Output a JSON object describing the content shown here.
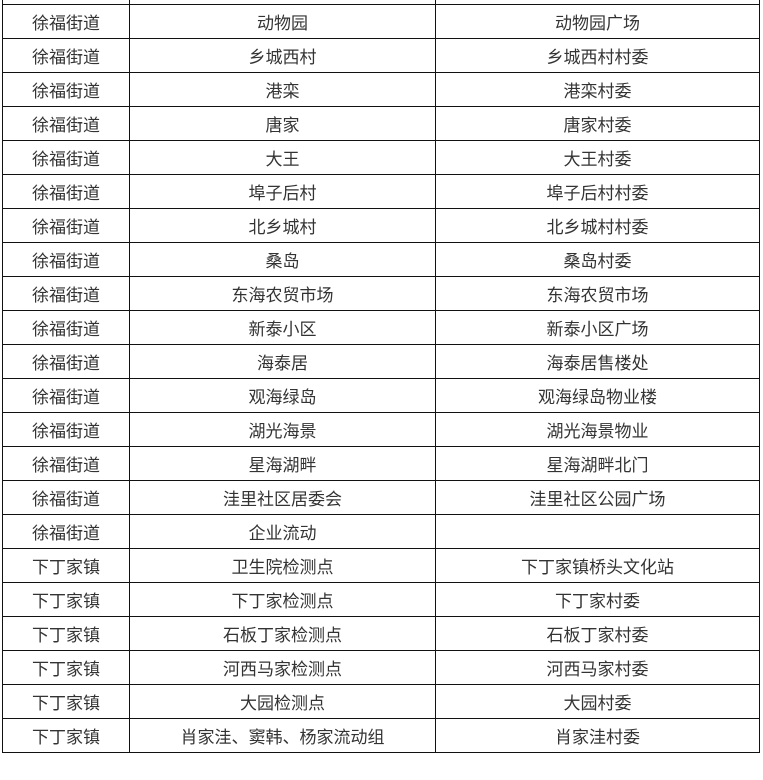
{
  "table": {
    "rows": [
      [
        "徐福街道",
        "动物园",
        "动物园广场"
      ],
      [
        "徐福街道",
        "乡城西村",
        "乡城西村村委"
      ],
      [
        "徐福街道",
        "港栾",
        "港栾村委"
      ],
      [
        "徐福街道",
        "唐家",
        "唐家村委"
      ],
      [
        "徐福街道",
        "大王",
        "大王村委"
      ],
      [
        "徐福街道",
        "埠子后村",
        "埠子后村村委"
      ],
      [
        "徐福街道",
        "北乡城村",
        "北乡城村村委"
      ],
      [
        "徐福街道",
        "桑岛",
        "桑岛村委"
      ],
      [
        "徐福街道",
        "东海农贸市场",
        "东海农贸市场"
      ],
      [
        "徐福街道",
        "新泰小区",
        "新泰小区广场"
      ],
      [
        "徐福街道",
        "海泰居",
        "海泰居售楼处"
      ],
      [
        "徐福街道",
        "观海绿岛",
        "观海绿岛物业楼"
      ],
      [
        "徐福街道",
        "湖光海景",
        "湖光海景物业"
      ],
      [
        "徐福街道",
        "星海湖畔",
        "星海湖畔北门"
      ],
      [
        "徐福街道",
        "洼里社区居委会",
        "洼里社区公园广场"
      ],
      [
        "徐福街道",
        "企业流动",
        ""
      ],
      [
        "下丁家镇",
        "卫生院检测点",
        "下丁家镇桥头文化站"
      ],
      [
        "下丁家镇",
        "下丁家检测点",
        "下丁家村委"
      ],
      [
        "下丁家镇",
        "石板丁家检测点",
        "石板丁家村委"
      ],
      [
        "下丁家镇",
        "河西马家检测点",
        "河西马家村委"
      ],
      [
        "下丁家镇",
        "大园检测点",
        "大园村委"
      ],
      [
        "下丁家镇",
        "肖家洼、窦韩、杨家流动组",
        "肖家洼村委"
      ]
    ]
  }
}
